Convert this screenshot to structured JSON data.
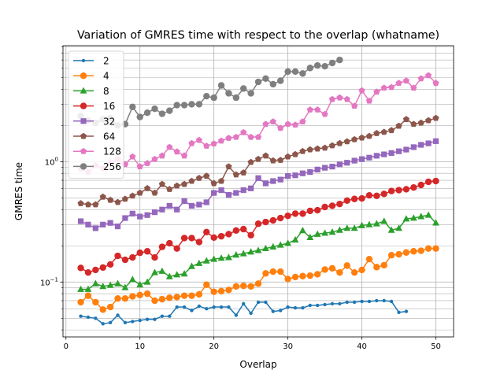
{
  "chart_data": {
    "type": "line",
    "title": "Variation of GMRES time with respect to the overlap (whatname)",
    "xlabel": "Overlap",
    "ylabel": "GMRES time",
    "xscale": "linear",
    "yscale": "log",
    "xlim": [
      -0.4,
      52.4
    ],
    "ylim": [
      0.035,
      9.2
    ],
    "xticks": [
      0,
      10,
      20,
      30,
      40,
      50
    ],
    "xtick_labels": [
      "0",
      "10",
      "20",
      "30",
      "40",
      "50"
    ],
    "yticks": [
      0.1,
      1
    ],
    "ytick_labels": [
      "10⁻¹",
      "10⁰"
    ],
    "grid": true,
    "legend_position": "top-left",
    "series": [
      {
        "name": "2",
        "color": "#1f77b4",
        "marker": "point",
        "x": [
          2,
          3,
          4,
          5,
          6,
          7,
          8,
          9,
          10,
          11,
          12,
          13,
          14,
          15,
          16,
          17,
          18,
          19,
          20,
          21,
          22,
          23,
          24,
          25,
          26,
          27,
          28,
          29,
          30,
          31,
          32,
          33,
          34,
          35,
          36,
          37,
          38,
          39,
          40,
          41,
          42,
          43,
          44,
          45,
          46
        ],
        "y": [
          0.052,
          0.051,
          0.05,
          0.045,
          0.046,
          0.053,
          0.046,
          0.047,
          0.048,
          0.049,
          0.049,
          0.052,
          0.052,
          0.062,
          0.062,
          0.058,
          0.063,
          0.06,
          0.062,
          0.062,
          0.062,
          0.053,
          0.066,
          0.055,
          0.068,
          0.068,
          0.057,
          0.058,
          0.062,
          0.061,
          0.061,
          0.064,
          0.064,
          0.065,
          0.066,
          0.066,
          0.068,
          0.068,
          0.069,
          0.069,
          0.07,
          0.07,
          0.069,
          0.056,
          0.057
        ]
      },
      {
        "name": "4",
        "color": "#ff7f0e",
        "marker": "circle",
        "x": [
          2,
          3,
          4,
          5,
          6,
          7,
          8,
          9,
          10,
          11,
          12,
          13,
          14,
          15,
          16,
          17,
          18,
          19,
          20,
          21,
          22,
          23,
          24,
          25,
          26,
          27,
          28,
          29,
          30,
          31,
          32,
          33,
          34,
          35,
          36,
          37,
          38,
          39,
          40,
          41,
          42,
          43,
          44,
          45,
          46,
          47,
          48,
          49,
          50
        ],
        "y": [
          0.068,
          0.077,
          0.068,
          0.059,
          0.062,
          0.073,
          0.073,
          0.076,
          0.078,
          0.08,
          0.07,
          0.072,
          0.074,
          0.075,
          0.077,
          0.077,
          0.079,
          0.095,
          0.083,
          0.084,
          0.086,
          0.092,
          0.093,
          0.092,
          0.097,
          0.118,
          0.122,
          0.122,
          0.106,
          0.11,
          0.112,
          0.113,
          0.116,
          0.127,
          0.13,
          0.12,
          0.137,
          0.12,
          0.126,
          0.155,
          0.133,
          0.138,
          0.167,
          0.17,
          0.176,
          0.18,
          0.182,
          0.19,
          0.19
        ]
      },
      {
        "name": "8",
        "color": "#2ca02c",
        "marker": "triangle",
        "x": [
          2,
          3,
          4,
          5,
          6,
          7,
          8,
          9,
          10,
          11,
          12,
          13,
          14,
          15,
          16,
          17,
          18,
          19,
          20,
          21,
          22,
          23,
          24,
          25,
          26,
          27,
          28,
          29,
          30,
          31,
          32,
          33,
          34,
          35,
          36,
          37,
          38,
          39,
          40,
          41,
          42,
          43,
          44,
          45,
          46,
          47,
          48,
          49,
          50
        ],
        "y": [
          0.087,
          0.087,
          0.097,
          0.092,
          0.094,
          0.097,
          0.09,
          0.105,
          0.095,
          0.1,
          0.12,
          0.123,
          0.111,
          0.115,
          0.117,
          0.135,
          0.143,
          0.15,
          0.155,
          0.158,
          0.16,
          0.168,
          0.172,
          0.178,
          0.183,
          0.19,
          0.196,
          0.203,
          0.21,
          0.224,
          0.268,
          0.235,
          0.25,
          0.255,
          0.26,
          0.27,
          0.28,
          0.28,
          0.295,
          0.3,
          0.305,
          0.32,
          0.27,
          0.28,
          0.335,
          0.34,
          0.35,
          0.36,
          0.31
        ]
      },
      {
        "name": "16",
        "color": "#d62728",
        "marker": "circle",
        "x": [
          2,
          3,
          4,
          5,
          6,
          7,
          8,
          9,
          10,
          11,
          12,
          13,
          14,
          15,
          16,
          17,
          18,
          19,
          20,
          21,
          22,
          23,
          24,
          25,
          26,
          27,
          28,
          29,
          30,
          31,
          32,
          33,
          34,
          35,
          36,
          37,
          38,
          39,
          40,
          41,
          42,
          43,
          44,
          45,
          46,
          47,
          48,
          49,
          50
        ],
        "y": [
          0.131,
          0.12,
          0.126,
          0.132,
          0.14,
          0.165,
          0.153,
          0.16,
          0.175,
          0.18,
          0.16,
          0.196,
          0.21,
          0.19,
          0.232,
          0.232,
          0.215,
          0.26,
          0.234,
          0.24,
          0.25,
          0.268,
          0.275,
          0.245,
          0.305,
          0.315,
          0.325,
          0.34,
          0.355,
          0.37,
          0.37,
          0.39,
          0.395,
          0.42,
          0.43,
          0.445,
          0.475,
          0.49,
          0.495,
          0.525,
          0.52,
          0.54,
          0.57,
          0.58,
          0.59,
          0.61,
          0.64,
          0.68,
          0.69
        ]
      },
      {
        "name": "32",
        "color": "#9467bd",
        "marker": "square",
        "x": [
          2,
          3,
          4,
          5,
          6,
          7,
          8,
          9,
          10,
          11,
          12,
          13,
          14,
          15,
          16,
          17,
          18,
          19,
          20,
          21,
          22,
          23,
          24,
          25,
          26,
          27,
          28,
          29,
          30,
          31,
          32,
          33,
          34,
          35,
          36,
          37,
          38,
          39,
          40,
          41,
          42,
          43,
          44,
          45,
          46,
          47,
          48,
          49,
          50
        ],
        "y": [
          0.32,
          0.3,
          0.28,
          0.3,
          0.31,
          0.29,
          0.34,
          0.37,
          0.35,
          0.36,
          0.38,
          0.4,
          0.43,
          0.4,
          0.47,
          0.43,
          0.44,
          0.46,
          0.55,
          0.58,
          0.53,
          0.55,
          0.58,
          0.6,
          0.73,
          0.66,
          0.69,
          0.71,
          0.76,
          0.77,
          0.8,
          0.82,
          0.86,
          0.89,
          0.91,
          0.95,
          0.98,
          1.02,
          1.05,
          1.08,
          1.12,
          1.15,
          1.18,
          1.22,
          1.26,
          1.32,
          1.38,
          1.42,
          1.48
        ]
      },
      {
        "name": "64",
        "color": "#8c564b",
        "marker": "pentagon",
        "x": [
          2,
          3,
          4,
          5,
          6,
          7,
          8,
          9,
          10,
          11,
          12,
          13,
          14,
          15,
          16,
          17,
          18,
          19,
          20,
          21,
          22,
          23,
          24,
          25,
          26,
          27,
          28,
          29,
          30,
          31,
          32,
          33,
          34,
          35,
          36,
          37,
          38,
          39,
          40,
          41,
          42,
          43,
          44,
          45,
          46,
          47,
          48,
          49,
          50
        ],
        "y": [
          0.45,
          0.44,
          0.44,
          0.51,
          0.48,
          0.46,
          0.49,
          0.52,
          0.55,
          0.6,
          0.55,
          0.65,
          0.59,
          0.63,
          0.65,
          0.69,
          0.73,
          0.76,
          0.66,
          0.69,
          0.91,
          0.78,
          0.81,
          0.99,
          1.05,
          1.12,
          1.02,
          1.03,
          1.1,
          1.15,
          1.22,
          1.26,
          1.28,
          1.3,
          1.36,
          1.42,
          1.47,
          1.53,
          1.58,
          1.63,
          1.72,
          1.76,
          1.82,
          1.98,
          2.25,
          2.05,
          2.1,
          2.2,
          2.3
        ]
      },
      {
        "name": "128",
        "color": "#e377c2",
        "marker": "pentagon",
        "x": [
          2,
          3,
          4,
          5,
          6,
          7,
          8,
          9,
          10,
          11,
          12,
          13,
          14,
          15,
          16,
          17,
          18,
          19,
          20,
          21,
          22,
          23,
          24,
          25,
          26,
          27,
          28,
          29,
          30,
          31,
          32,
          33,
          34,
          35,
          36,
          37,
          38,
          39,
          40,
          41,
          42,
          43,
          44,
          45,
          46,
          47,
          48,
          49,
          50
        ],
        "y": [
          0.87,
          0.82,
          0.93,
          0.88,
          0.98,
          1.05,
          0.95,
          1.1,
          0.91,
          0.97,
          1.05,
          1.12,
          1.32,
          1.21,
          1.12,
          1.42,
          1.51,
          1.35,
          1.41,
          1.49,
          1.57,
          1.6,
          1.75,
          1.6,
          1.6,
          2.05,
          2.15,
          1.9,
          2.05,
          2.02,
          2.15,
          2.7,
          2.7,
          2.48,
          3.3,
          3.4,
          3.3,
          2.9,
          3.9,
          3.2,
          3.8,
          4.1,
          4.15,
          4.5,
          4.7,
          4.1,
          4.9,
          5.2,
          4.5
        ]
      },
      {
        "name": "256",
        "color": "#7f7f7f",
        "marker": "circle",
        "x": [
          2,
          3,
          4,
          5,
          6,
          7,
          8,
          9,
          10,
          11,
          12,
          13,
          14,
          15,
          16,
          17,
          18,
          19,
          20,
          21,
          22,
          23,
          24,
          25,
          26,
          27,
          28,
          29,
          30,
          31,
          32,
          33,
          34,
          35,
          36,
          37
        ],
        "y": [
          2.4,
          2.2,
          2.1,
          2.25,
          2.3,
          2.0,
          2.05,
          2.85,
          2.35,
          2.55,
          2.75,
          2.5,
          2.65,
          2.95,
          2.95,
          3.0,
          3.0,
          3.5,
          3.4,
          4.3,
          3.7,
          3.4,
          4.05,
          3.7,
          4.6,
          4.9,
          4.4,
          4.7,
          5.6,
          5.6,
          5.4,
          6.0,
          6.3,
          6.2,
          6.6,
          7.0
        ]
      }
    ]
  }
}
